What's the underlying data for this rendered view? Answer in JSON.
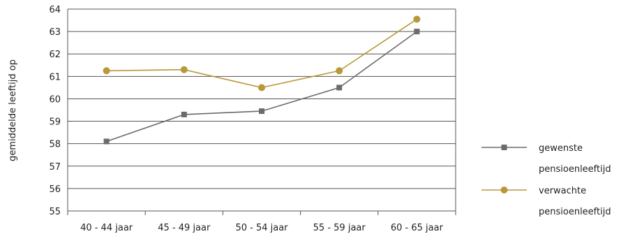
{
  "chart_data": {
    "type": "line",
    "categories": [
      "40 - 44 jaar",
      "45 - 49 jaar",
      "50 - 54 jaar",
      "55 - 59 jaar",
      "60 - 65 jaar"
    ],
    "ylabel": "gemiddelde leeftijd op",
    "xlabel": "",
    "title": "",
    "ylim": [
      55,
      64
    ],
    "yticks": [
      55,
      56,
      57,
      58,
      59,
      60,
      61,
      62,
      63,
      64
    ],
    "grid": true,
    "legend_position": "right",
    "series": [
      {
        "name": "gewenste pensioenleeftijd",
        "legend_lines": [
          "gewenste",
          "pensioenleeftijd"
        ],
        "values": [
          58.1,
          59.3,
          59.45,
          60.5,
          63.0
        ],
        "color": "#6b6b6b",
        "marker": "square"
      },
      {
        "name": "verwachte pensioenleeftijd",
        "legend_lines": [
          "verwachte",
          "pensioenleeftijd"
        ],
        "values": [
          61.25,
          61.3,
          60.5,
          61.25,
          63.55
        ],
        "color": "#b8983a",
        "marker": "circle"
      }
    ]
  }
}
